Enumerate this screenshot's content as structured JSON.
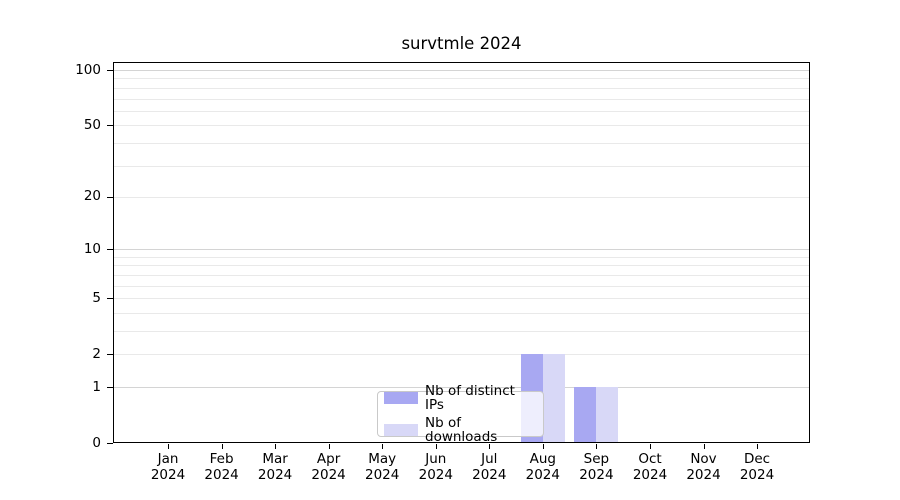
{
  "chart_data": {
    "type": "bar",
    "title": "survtmle 2024",
    "categories": [
      "Jan",
      "Feb",
      "Mar",
      "Apr",
      "May",
      "Jun",
      "Jul",
      "Aug",
      "Sep",
      "Oct",
      "Nov",
      "Dec"
    ],
    "year": "2024",
    "series": [
      {
        "name": "Nb of distinct IPs",
        "color": "#a8a8f2",
        "values": [
          0,
          0,
          0,
          0,
          0,
          0,
          0,
          2,
          1,
          0,
          0,
          0
        ]
      },
      {
        "name": "Nb of downloads",
        "color": "#d8d8f7",
        "values": [
          0,
          0,
          0,
          0,
          0,
          0,
          0,
          2,
          1,
          0,
          0,
          0
        ]
      }
    ],
    "yscale": "log1p",
    "yticks": [
      0,
      1,
      2,
      5,
      10,
      20,
      50,
      100
    ],
    "ylim": [
      0,
      110
    ],
    "xlabel": "",
    "ylabel": "",
    "legend_position": "lower-center",
    "grid": {
      "orientation": "horizontal",
      "minor_values": [
        2,
        3,
        4,
        5,
        6,
        7,
        8,
        9,
        20,
        30,
        40,
        50,
        60,
        70,
        80,
        90
      ],
      "major_values": [
        1,
        10,
        100
      ],
      "minor_color": "#e9e9e9",
      "major_color": "#d4d4d4"
    },
    "axis_color": "#000000",
    "text_color": "#000000",
    "background_color": "#ffffff"
  }
}
